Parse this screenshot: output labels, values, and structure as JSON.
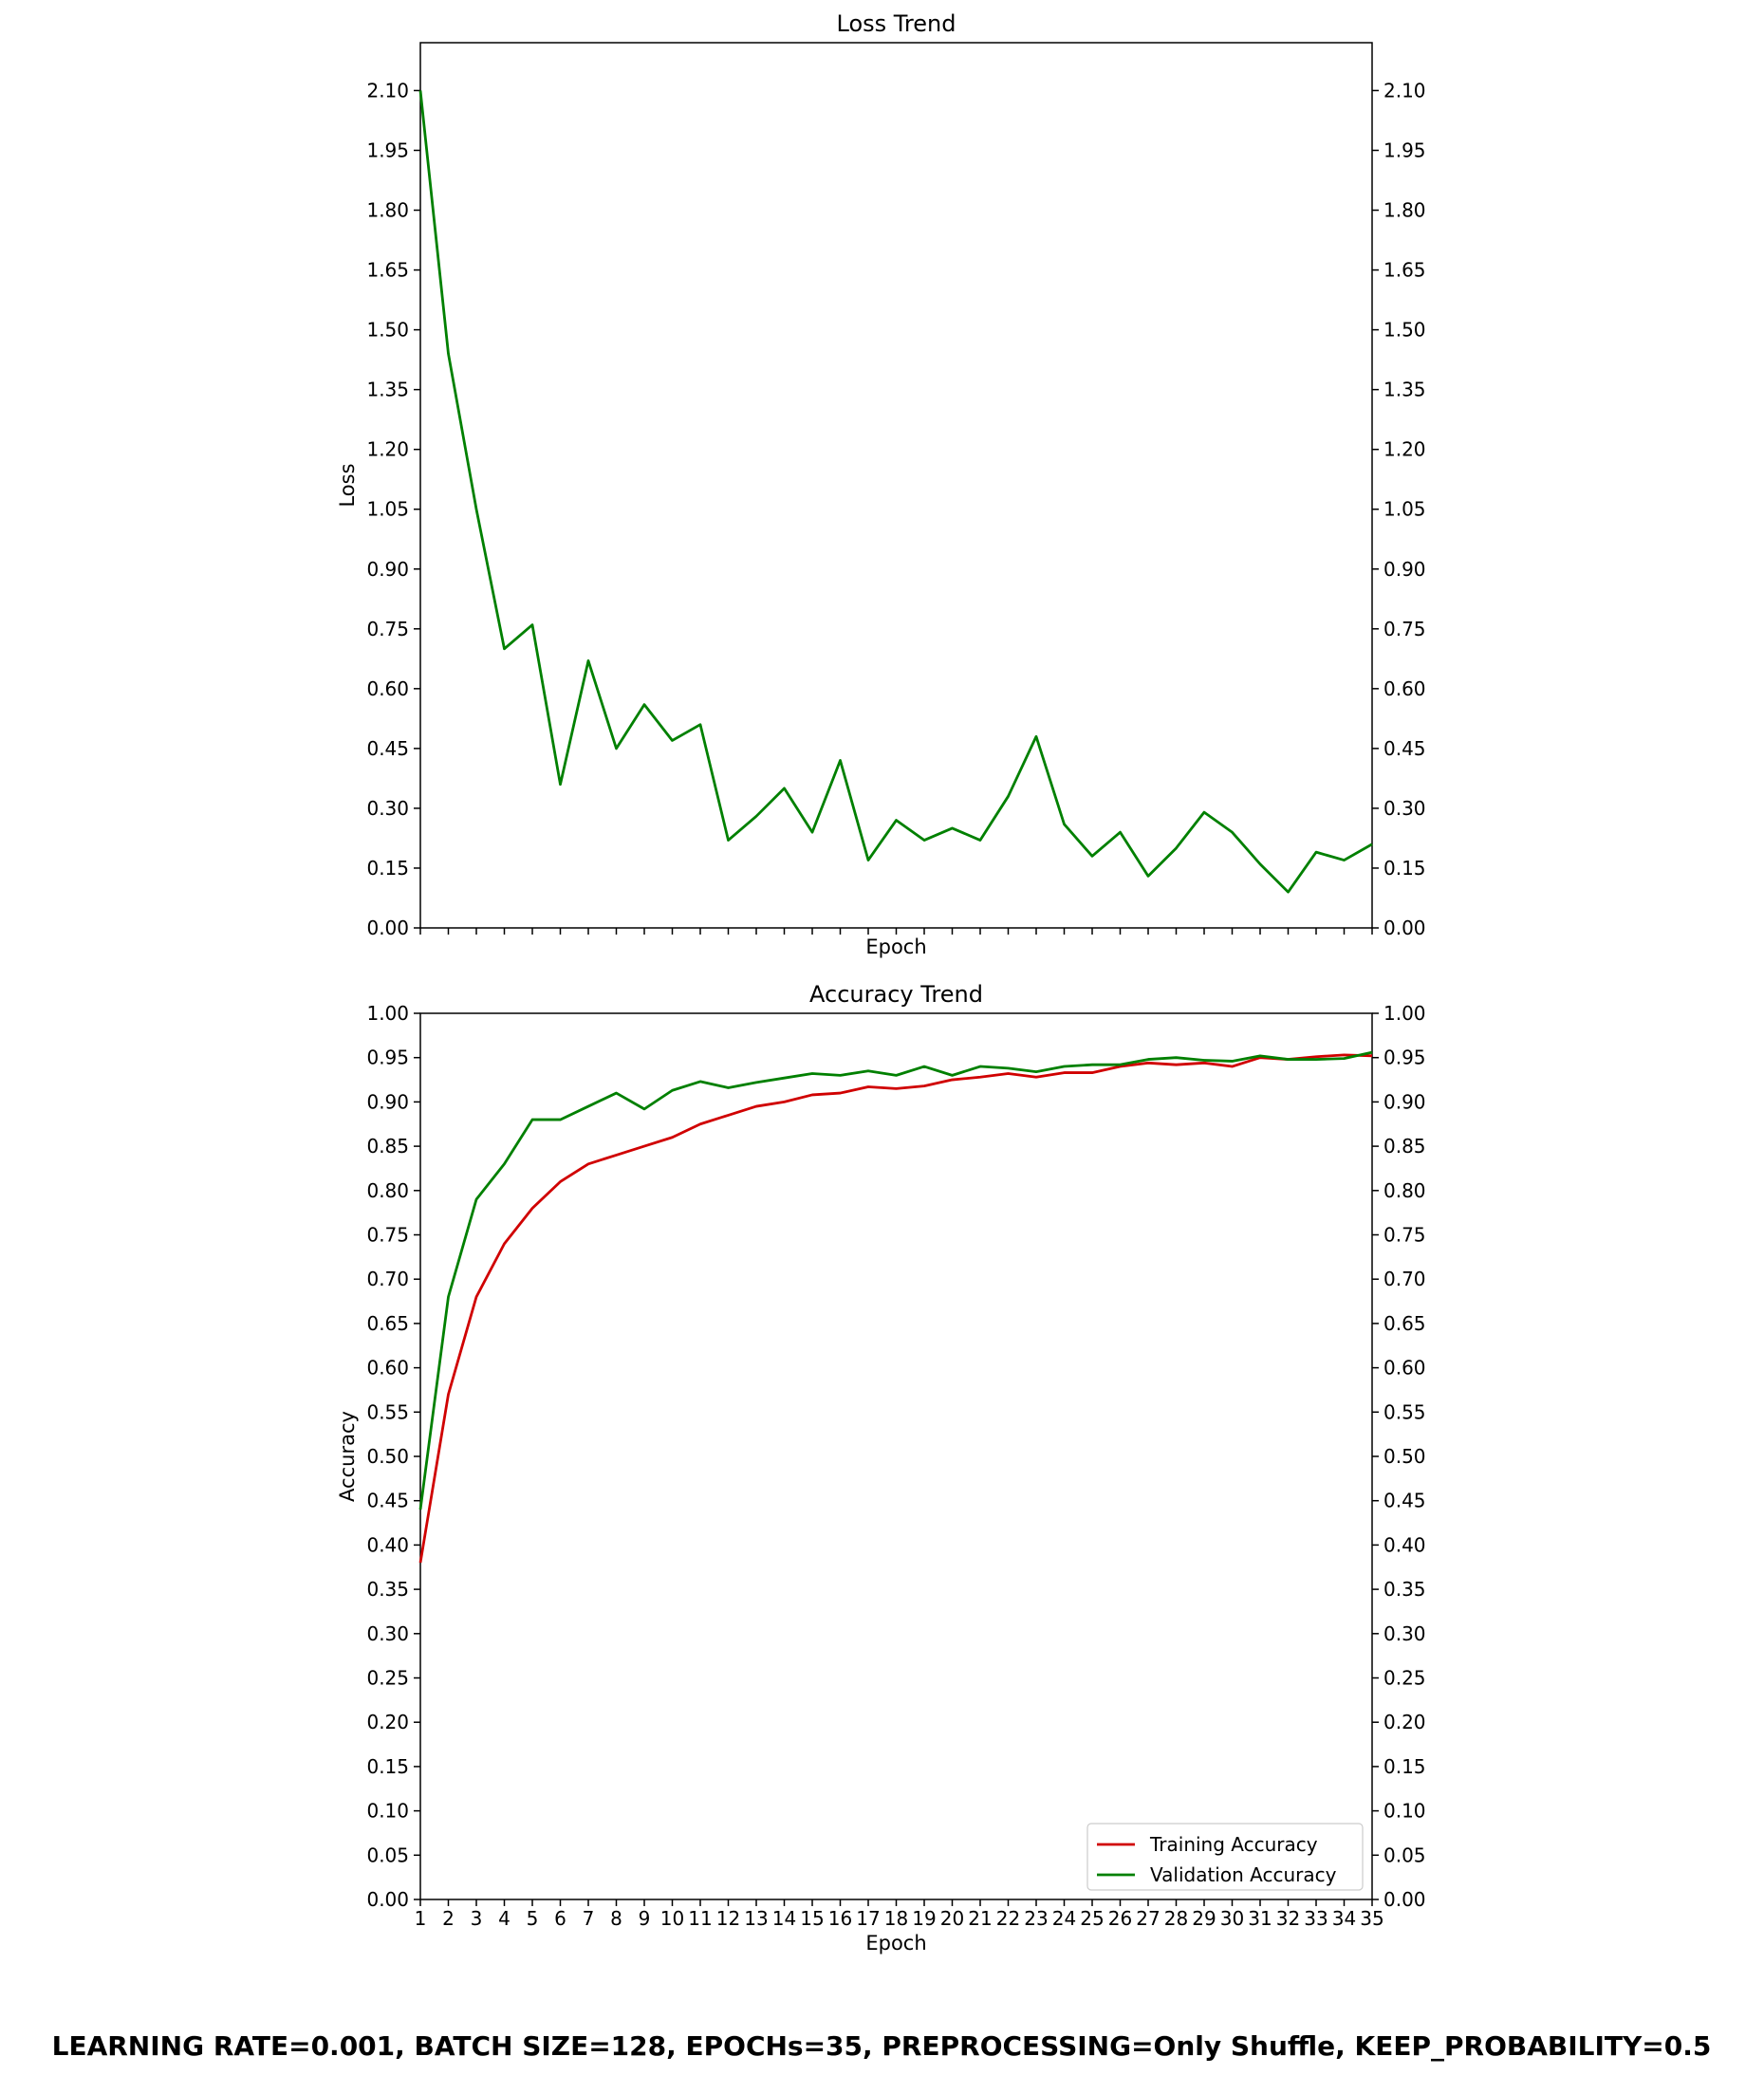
{
  "figure": {
    "footer": "LEARNING RATE=0.001, BATCH SIZE=128, EPOCHs=35, PREPROCESSING=Only Shuffle, KEEP_PROBABILITY=0.5"
  },
  "chart_data": [
    {
      "type": "line",
      "title": "Loss Trend",
      "xlabel": "Epoch",
      "ylabel": "Loss",
      "xlim": [
        1,
        35
      ],
      "ylim": [
        0,
        2.22
      ],
      "yticks": [
        "0.00",
        "0.15",
        "0.30",
        "0.45",
        "0.60",
        "0.75",
        "0.90",
        "1.05",
        "1.20",
        "1.35",
        "1.50",
        "1.65",
        "1.80",
        "1.95",
        "2.10"
      ],
      "x_tick_labels_visible": false,
      "right_axis_mirror": true,
      "grid": false,
      "legend": null,
      "x": [
        1,
        2,
        3,
        4,
        5,
        6,
        7,
        8,
        9,
        10,
        11,
        12,
        13,
        14,
        15,
        16,
        17,
        18,
        19,
        20,
        21,
        22,
        23,
        24,
        25,
        26,
        27,
        28,
        29,
        30,
        31,
        32,
        33,
        34,
        35
      ],
      "series": [
        {
          "color": "#008000",
          "values": [
            2.1,
            1.44,
            1.05,
            0.7,
            0.76,
            0.36,
            0.67,
            0.45,
            0.56,
            0.47,
            0.51,
            0.22,
            0.28,
            0.35,
            0.24,
            0.42,
            0.17,
            0.27,
            0.22,
            0.25,
            0.22,
            0.33,
            0.48,
            0.26,
            0.18,
            0.24,
            0.13,
            0.2,
            0.29,
            0.24,
            0.16,
            0.09,
            0.19,
            0.17,
            0.21
          ]
        }
      ]
    },
    {
      "type": "line",
      "title": "Accuracy Trend",
      "xlabel": "Epoch",
      "ylabel": "Accuracy",
      "xlim": [
        1,
        35
      ],
      "ylim": [
        0,
        1.0
      ],
      "yticks": [
        "0.00",
        "0.05",
        "0.10",
        "0.15",
        "0.20",
        "0.25",
        "0.30",
        "0.35",
        "0.40",
        "0.45",
        "0.50",
        "0.55",
        "0.60",
        "0.65",
        "0.70",
        "0.75",
        "0.80",
        "0.85",
        "0.90",
        "0.95",
        "1.00"
      ],
      "x_tick_labels": [
        "1",
        "2",
        "3",
        "4",
        "5",
        "6",
        "7",
        "8",
        "9",
        "10",
        "11",
        "12",
        "13",
        "14",
        "15",
        "16",
        "17",
        "18",
        "19",
        "20",
        "21",
        "22",
        "23",
        "24",
        "25",
        "26",
        "27",
        "28",
        "29",
        "30",
        "31",
        "32",
        "33",
        "34",
        "35"
      ],
      "right_axis_mirror": true,
      "grid": false,
      "legend": "bottom-right",
      "x": [
        1,
        2,
        3,
        4,
        5,
        6,
        7,
        8,
        9,
        10,
        11,
        12,
        13,
        14,
        15,
        16,
        17,
        18,
        19,
        20,
        21,
        22,
        23,
        24,
        25,
        26,
        27,
        28,
        29,
        30,
        31,
        32,
        33,
        34,
        35
      ],
      "series": [
        {
          "name": "Training Accuracy",
          "color": "#d00000",
          "values": [
            0.38,
            0.57,
            0.68,
            0.74,
            0.78,
            0.81,
            0.83,
            0.84,
            0.85,
            0.86,
            0.875,
            0.885,
            0.895,
            0.9,
            0.908,
            0.91,
            0.917,
            0.915,
            0.918,
            0.925,
            0.928,
            0.932,
            0.928,
            0.933,
            0.933,
            0.94,
            0.944,
            0.942,
            0.944,
            0.94,
            0.95,
            0.948,
            0.951,
            0.953,
            0.952
          ]
        },
        {
          "name": "Validation Accuracy",
          "color": "#008000",
          "values": [
            0.44,
            0.68,
            0.79,
            0.83,
            0.88,
            0.88,
            0.895,
            0.91,
            0.892,
            0.913,
            0.923,
            0.916,
            0.922,
            0.927,
            0.932,
            0.93,
            0.935,
            0.93,
            0.94,
            0.93,
            0.94,
            0.938,
            0.934,
            0.94,
            0.942,
            0.942,
            0.948,
            0.95,
            0.947,
            0.946,
            0.952,
            0.948,
            0.948,
            0.949,
            0.956
          ]
        }
      ]
    }
  ]
}
